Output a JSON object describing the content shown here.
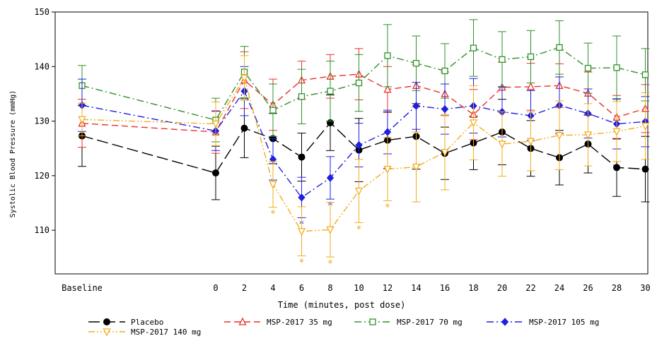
{
  "chart_data": {
    "type": "line",
    "title": "",
    "xlabel": "Time (minutes, post dose)",
    "ylabel": "Systolic Blood Pressure (mmHg)",
    "ylim": [
      102,
      150
    ],
    "yticks": [
      110,
      120,
      130,
      140,
      150
    ],
    "x_tick_labels": [
      "Baseline",
      "0",
      "2",
      "4",
      "6",
      "8",
      "10",
      "12",
      "14",
      "16",
      "18",
      "20",
      "22",
      "24",
      "26",
      "28",
      "30"
    ],
    "grid": false,
    "legend_position": "bottom",
    "significance_marker": "*",
    "series": [
      {
        "name": "Placebo",
        "color": "#000000",
        "marker": "filled-circle",
        "dash": "long-dash",
        "values": [
          127.3,
          120.5,
          128.7,
          126.8,
          123.4,
          129.7,
          124.7,
          126.5,
          127.2,
          124.1,
          126.0,
          128.0,
          125.0,
          123.3,
          125.8,
          121.5,
          121.2
        ],
        "errors": [
          5.6,
          4.9,
          5.4,
          4.6,
          4.4,
          5.1,
          5.8,
          5.2,
          6.0,
          4.8,
          4.9,
          6.0,
          5.1,
          5.0,
          5.3,
          5.3,
          6.0
        ],
        "significant": []
      },
      {
        "name": "MSP-2017 35 mg",
        "color": "#e8322a",
        "marker": "open-triangle",
        "dash": "dash",
        "values": [
          129.6,
          128.0,
          137.5,
          133.0,
          137.5,
          138.2,
          138.6,
          135.8,
          136.5,
          135.0,
          131.2,
          136.2,
          136.3,
          136.5,
          135.1,
          130.7,
          132.3
        ],
        "errors": [
          4.4,
          3.9,
          5.2,
          4.7,
          3.5,
          4.0,
          4.7,
          4.2,
          3.9,
          4.0,
          4.6,
          4.6,
          4.3,
          4.0,
          3.9,
          4.0,
          4.4
        ],
        "significant": []
      },
      {
        "name": "MSP-2017 70 mg",
        "color": "#2f9128",
        "marker": "open-square",
        "dash": "dash-dot",
        "values": [
          136.5,
          130.2,
          139.0,
          132.0,
          134.5,
          135.5,
          137.0,
          142.0,
          140.6,
          139.2,
          143.4,
          141.3,
          141.8,
          143.5,
          139.7,
          139.8,
          138.5
        ],
        "errors": [
          3.7,
          4.0,
          4.7,
          4.8,
          5.0,
          5.5,
          5.2,
          5.7,
          5.0,
          5.0,
          5.2,
          5.1,
          4.8,
          4.9,
          4.6,
          5.8,
          4.8
        ],
        "significant": []
      },
      {
        "name": "MSP-2017 105 mg",
        "color": "#1f1fe0",
        "marker": "filled-diamond",
        "dash": "dash-dot",
        "values": [
          132.9,
          128.2,
          135.5,
          123.0,
          116.0,
          119.6,
          125.6,
          128.0,
          132.8,
          132.2,
          132.8,
          131.7,
          131.0,
          132.9,
          131.4,
          129.5,
          129.9
        ],
        "errors": [
          4.8,
          3.6,
          4.5,
          3.8,
          3.7,
          3.9,
          4.0,
          4.0,
          4.3,
          4.6,
          5.0,
          4.6,
          4.6,
          5.2,
          4.5,
          4.6,
          4.6
        ],
        "significant": [
          4,
          5
        ]
      },
      {
        "name": "MSP-2017 140 mg",
        "color": "#f2ad1c",
        "marker": "open-inverted-triangle",
        "dash": "dash-dot-dot",
        "values": [
          130.3,
          129.5,
          137.9,
          118.4,
          109.8,
          110.1,
          117.2,
          121.2,
          121.6,
          124.3,
          129.7,
          125.8,
          126.3,
          127.4,
          127.5,
          128.1,
          129.1
        ],
        "errors": [
          3.0,
          4.0,
          4.1,
          4.2,
          4.5,
          5.0,
          5.8,
          5.8,
          6.4,
          6.9,
          6.8,
          5.9,
          5.4,
          6.3,
          5.7,
          5.5,
          6.1
        ],
        "significant": [
          3,
          4,
          5,
          6,
          7
        ]
      }
    ]
  }
}
